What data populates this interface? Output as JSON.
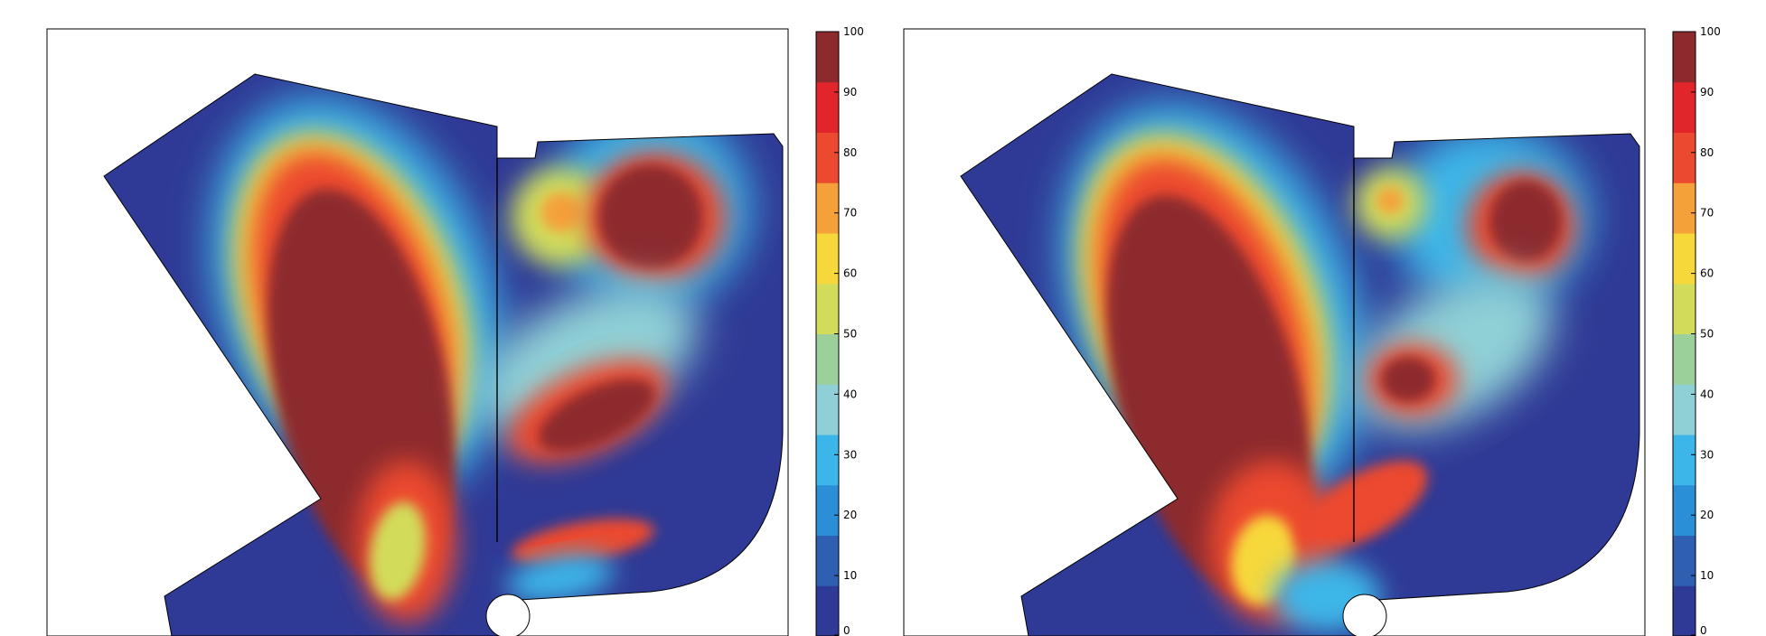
{
  "chart_data": [
    {
      "type": "heatmap",
      "title": "",
      "xlabel": "",
      "ylabel": "",
      "colorbar": {
        "range": [
          0,
          100
        ],
        "ticks": [
          100,
          90,
          80,
          70,
          60,
          50,
          40,
          30,
          20,
          10,
          0
        ],
        "tick_labels": [
          "100",
          "90",
          "80",
          "70",
          "60",
          "50",
          "40",
          "30",
          "20",
          "10",
          "0"
        ],
        "colormap": "jet",
        "colors": [
          "#2f3a96",
          "#2f5fb0",
          "#2a8fd6",
          "#3cb6e8",
          "#8fd0d6",
          "#9cd09a",
          "#d2dc5a",
          "#f7d83a",
          "#f5a13a",
          "#ec4a2e",
          "#e0262a",
          "#8c2a2e"
        ]
      },
      "regions": [
        {
          "name": "west-zone-hotspot",
          "approx_value": 100
        },
        {
          "name": "east-north-loop-hotspot",
          "approx_value": 100
        },
        {
          "name": "east-middle-hotspot",
          "approx_value": 95
        },
        {
          "name": "background",
          "approx_value": 5
        }
      ]
    },
    {
      "type": "heatmap",
      "title": "",
      "xlabel": "",
      "ylabel": "",
      "colorbar": {
        "range": [
          0,
          100
        ],
        "ticks": [
          100,
          90,
          80,
          70,
          60,
          50,
          40,
          30,
          20,
          10,
          0
        ],
        "tick_labels": [
          "100",
          "90",
          "80",
          "70",
          "60",
          "50",
          "40",
          "30",
          "20",
          "10",
          "0"
        ],
        "colormap": "jet",
        "colors": [
          "#2f3a96",
          "#2f5fb0",
          "#2a8fd6",
          "#3cb6e8",
          "#8fd0d6",
          "#9cd09a",
          "#d2dc5a",
          "#f7d83a",
          "#f5a13a",
          "#ec4a2e",
          "#e0262a",
          "#8c2a2e"
        ]
      },
      "regions": [
        {
          "name": "west-zone-hotspot",
          "approx_value": 100
        },
        {
          "name": "east-north-loop-hotspot",
          "approx_value": 95
        },
        {
          "name": "east-middle-hotspot",
          "approx_value": 95
        },
        {
          "name": "background",
          "approx_value": 5
        }
      ]
    }
  ]
}
